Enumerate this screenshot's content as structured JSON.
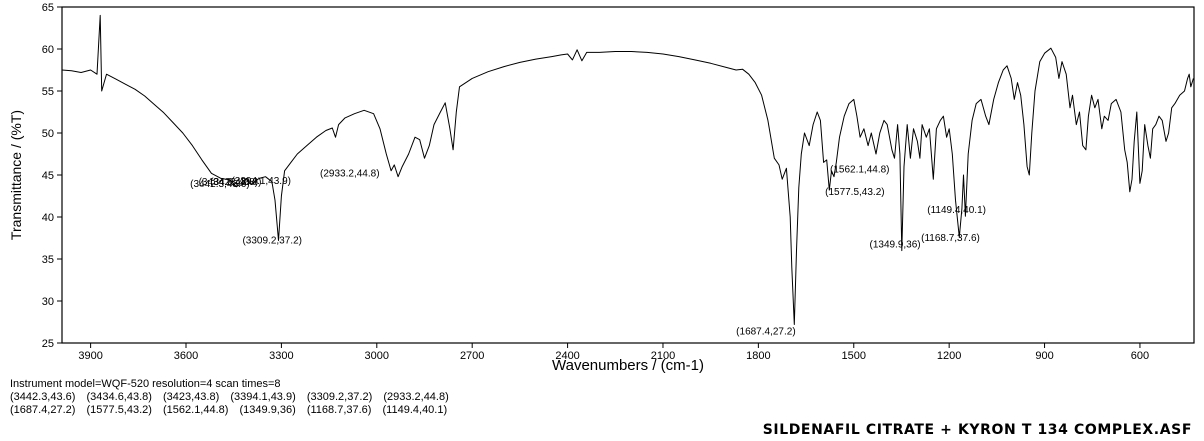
{
  "chart_data": {
    "type": "line",
    "title": "",
    "xlabel": "Wavenumbers / (cm-1)",
    "ylabel": "Transmittance / (%T)",
    "xlim": [
      3990,
      430
    ],
    "ylim": [
      25,
      65
    ],
    "x_reversed": true,
    "grid": false,
    "x_ticks": [
      3900,
      3600,
      3300,
      3000,
      2700,
      2400,
      2100,
      1800,
      1500,
      1200,
      900,
      600
    ],
    "y_ticks": [
      25,
      30,
      35,
      40,
      45,
      50,
      55,
      60,
      65
    ],
    "series": [
      {
        "points": [
          [
            3990,
            57.5
          ],
          [
            3960,
            57.4
          ],
          [
            3930,
            57.2
          ],
          [
            3900,
            57.5
          ],
          [
            3880,
            57.0
          ],
          [
            3870,
            64.0
          ],
          [
            3865,
            55.0
          ],
          [
            3850,
            57.0
          ],
          [
            3820,
            56.4
          ],
          [
            3790,
            55.8
          ],
          [
            3760,
            55.2
          ],
          [
            3730,
            54.4
          ],
          [
            3700,
            53.4
          ],
          [
            3670,
            52.4
          ],
          [
            3640,
            51.2
          ],
          [
            3610,
            50.0
          ],
          [
            3580,
            48.5
          ],
          [
            3550,
            46.8
          ],
          [
            3520,
            45.2
          ],
          [
            3490,
            44.6
          ],
          [
            3460,
            44.4
          ],
          [
            3442,
            43.6
          ],
          [
            3434,
            43.8
          ],
          [
            3423,
            43.8
          ],
          [
            3410,
            44.6
          ],
          [
            3394,
            43.9
          ],
          [
            3370,
            44.6
          ],
          [
            3350,
            44.8
          ],
          [
            3330,
            44.2
          ],
          [
            3320,
            42.0
          ],
          [
            3309,
            37.2
          ],
          [
            3300,
            42.5
          ],
          [
            3290,
            45.5
          ],
          [
            3270,
            46.5
          ],
          [
            3250,
            47.5
          ],
          [
            3220,
            48.5
          ],
          [
            3190,
            49.5
          ],
          [
            3160,
            50.3
          ],
          [
            3140,
            50.6
          ],
          [
            3130,
            49.5
          ],
          [
            3120,
            51.0
          ],
          [
            3100,
            51.8
          ],
          [
            3070,
            52.3
          ],
          [
            3040,
            52.7
          ],
          [
            3010,
            52.3
          ],
          [
            2990,
            50.5
          ],
          [
            2970,
            47.5
          ],
          [
            2955,
            45.5
          ],
          [
            2945,
            46.2
          ],
          [
            2933,
            44.8
          ],
          [
            2920,
            46.0
          ],
          [
            2900,
            47.5
          ],
          [
            2880,
            49.5
          ],
          [
            2865,
            49.2
          ],
          [
            2850,
            47.0
          ],
          [
            2835,
            48.5
          ],
          [
            2820,
            51.0
          ],
          [
            2800,
            52.5
          ],
          [
            2785,
            53.6
          ],
          [
            2770,
            50.5
          ],
          [
            2760,
            48.0
          ],
          [
            2750,
            52.5
          ],
          [
            2740,
            55.5
          ],
          [
            2700,
            56.5
          ],
          [
            2650,
            57.3
          ],
          [
            2600,
            57.9
          ],
          [
            2550,
            58.4
          ],
          [
            2500,
            58.8
          ],
          [
            2450,
            59.1
          ],
          [
            2420,
            59.3
          ],
          [
            2400,
            59.4
          ],
          [
            2385,
            58.7
          ],
          [
            2370,
            59.9
          ],
          [
            2355,
            58.6
          ],
          [
            2340,
            59.6
          ],
          [
            2300,
            59.6
          ],
          [
            2250,
            59.7
          ],
          [
            2200,
            59.7
          ],
          [
            2150,
            59.6
          ],
          [
            2100,
            59.4
          ],
          [
            2050,
            59.1
          ],
          [
            2000,
            58.7
          ],
          [
            1950,
            58.3
          ],
          [
            1900,
            57.8
          ],
          [
            1870,
            57.5
          ],
          [
            1850,
            57.6
          ],
          [
            1830,
            57.0
          ],
          [
            1810,
            56.0
          ],
          [
            1790,
            54.5
          ],
          [
            1770,
            51.5
          ],
          [
            1750,
            47.0
          ],
          [
            1735,
            46.2
          ],
          [
            1725,
            44.5
          ],
          [
            1712,
            45.8
          ],
          [
            1700,
            40.0
          ],
          [
            1695,
            34.0
          ],
          [
            1687,
            27.2
          ],
          [
            1680,
            36.0
          ],
          [
            1673,
            43.5
          ],
          [
            1665,
            47.5
          ],
          [
            1655,
            50.0
          ],
          [
            1640,
            48.5
          ],
          [
            1628,
            51.0
          ],
          [
            1615,
            52.5
          ],
          [
            1605,
            51.5
          ],
          [
            1595,
            46.5
          ],
          [
            1585,
            46.8
          ],
          [
            1577,
            43.2
          ],
          [
            1570,
            45.5
          ],
          [
            1562,
            44.8
          ],
          [
            1555,
            46.5
          ],
          [
            1545,
            49.5
          ],
          [
            1530,
            52.0
          ],
          [
            1515,
            53.5
          ],
          [
            1500,
            54.0
          ],
          [
            1490,
            52.0
          ],
          [
            1480,
            49.5
          ],
          [
            1468,
            50.5
          ],
          [
            1455,
            48.5
          ],
          [
            1445,
            50.0
          ],
          [
            1430,
            47.5
          ],
          [
            1418,
            50.0
          ],
          [
            1405,
            51.5
          ],
          [
            1395,
            51.0
          ],
          [
            1380,
            48.0
          ],
          [
            1372,
            47.0
          ],
          [
            1362,
            51.0
          ],
          [
            1355,
            47.5
          ],
          [
            1349,
            36.0
          ],
          [
            1342,
            46.0
          ],
          [
            1332,
            51.0
          ],
          [
            1322,
            47.0
          ],
          [
            1312,
            50.5
          ],
          [
            1300,
            49.0
          ],
          [
            1292,
            47.0
          ],
          [
            1285,
            51.0
          ],
          [
            1272,
            49.5
          ],
          [
            1262,
            50.5
          ],
          [
            1250,
            44.5
          ],
          [
            1240,
            50.5
          ],
          [
            1228,
            51.5
          ],
          [
            1218,
            52.0
          ],
          [
            1208,
            49.5
          ],
          [
            1200,
            50.5
          ],
          [
            1190,
            47.5
          ],
          [
            1180,
            42.0
          ],
          [
            1168,
            37.6
          ],
          [
            1160,
            41.0
          ],
          [
            1155,
            45.0
          ],
          [
            1149,
            40.1
          ],
          [
            1140,
            47.5
          ],
          [
            1128,
            51.5
          ],
          [
            1115,
            53.5
          ],
          [
            1100,
            54.0
          ],
          [
            1085,
            52.0
          ],
          [
            1075,
            51.0
          ],
          [
            1060,
            54.0
          ],
          [
            1045,
            56.0
          ],
          [
            1030,
            57.5
          ],
          [
            1018,
            58.0
          ],
          [
            1005,
            56.5
          ],
          [
            995,
            54.0
          ],
          [
            985,
            56.0
          ],
          [
            975,
            54.5
          ],
          [
            965,
            51.0
          ],
          [
            955,
            46.0
          ],
          [
            948,
            45.0
          ],
          [
            940,
            50.0
          ],
          [
            930,
            55.0
          ],
          [
            915,
            58.5
          ],
          [
            900,
            59.5
          ],
          [
            880,
            60.1
          ],
          [
            865,
            59.0
          ],
          [
            855,
            56.5
          ],
          [
            845,
            58.5
          ],
          [
            832,
            57.0
          ],
          [
            820,
            53.0
          ],
          [
            812,
            54.5
          ],
          [
            800,
            51.0
          ],
          [
            790,
            52.5
          ],
          [
            780,
            48.5
          ],
          [
            770,
            48.0
          ],
          [
            762,
            52.0
          ],
          [
            752,
            54.5
          ],
          [
            742,
            53.0
          ],
          [
            732,
            54.0
          ],
          [
            720,
            50.5
          ],
          [
            712,
            52.0
          ],
          [
            700,
            51.5
          ],
          [
            690,
            53.5
          ],
          [
            675,
            54.0
          ],
          [
            660,
            52.5
          ],
          [
            648,
            48.0
          ],
          [
            640,
            46.5
          ],
          [
            632,
            43.0
          ],
          [
            625,
            44.5
          ],
          [
            618,
            49.0
          ],
          [
            610,
            52.5
          ],
          [
            600,
            44.0
          ],
          [
            593,
            45.5
          ],
          [
            585,
            51.0
          ],
          [
            575,
            48.5
          ],
          [
            567,
            47.0
          ],
          [
            560,
            50.5
          ],
          [
            550,
            51.0
          ],
          [
            540,
            52.0
          ],
          [
            530,
            51.5
          ],
          [
            518,
            49.0
          ],
          [
            510,
            50.0
          ],
          [
            500,
            53.0
          ],
          [
            490,
            53.5
          ],
          [
            475,
            54.5
          ],
          [
            460,
            55.0
          ],
          [
            450,
            56.5
          ],
          [
            445,
            57.0
          ],
          [
            440,
            55.5
          ],
          [
            432,
            56.5
          ]
        ]
      }
    ],
    "peak_labels": [
      {
        "text": "(3309.2,37.2)",
        "x": 3309.2,
        "y": 37.2
      },
      {
        "text": "(2933.2,44.8)",
        "x": 2933.2,
        "y": 44.8
      },
      {
        "text": "(1687.4,27.2)",
        "x": 1687.4,
        "y": 27.2
      },
      {
        "text": "(1577.5,43.2)",
        "x": 1577.5,
        "y": 43.2
      },
      {
        "text": "(1562.1,44.8)",
        "x": 1562.1,
        "y": 44.8
      },
      {
        "text": "(1349.9,36)",
        "x": 1349.9,
        "y": 36
      },
      {
        "text": "(1168.7,37.6)",
        "x": 1168.7,
        "y": 37.6
      },
      {
        "text": "(1149.4,40.1)",
        "x": 1149.4,
        "y": 40.1
      },
      {
        "text": "(3442.3,43.6)",
        "x": 3442.3,
        "y": 43.6
      },
      {
        "text": "(3434.6,43.8)",
        "x": 3434.6,
        "y": 43.8
      },
      {
        "text": "(3423,43.8)",
        "x": 3423,
        "y": 43.8
      },
      {
        "text": "(3394.1,43.9)",
        "x": 3394.1,
        "y": 43.9
      }
    ],
    "line_color": "#000000"
  },
  "instrument_line": "Instrument model=WQF-520 resolution=4 scan times=8",
  "peak_list": [
    [
      "(3442.3,43.6)",
      "(3434.6,43.8)",
      "(3423,43.8)",
      "(3394.1,43.9)",
      "(3309.2,37.2)",
      "(2933.2,44.8)"
    ],
    [
      "(1687.4,27.2)",
      "(1577.5,43.2)",
      "(1562.1,44.8)",
      "(1349.9,36)",
      "(1168.7,37.6)",
      "(1149.4,40.1)"
    ]
  ],
  "filename": "SILDENAFIL CITRATE + KYRON T 134 COMPLEX.ASF"
}
